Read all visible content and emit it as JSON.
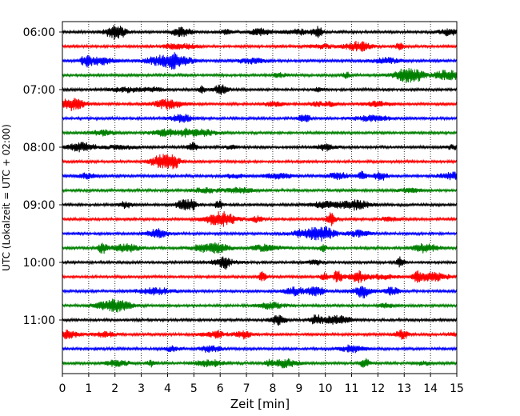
{
  "chart_data": {
    "type": "line",
    "title": "",
    "xlabel": "Zeit  [min]",
    "ylabel": "UTC (Lokalzeit = UTC + 02:00)",
    "xlim": [
      0,
      15
    ],
    "x_ticks": [
      0,
      1,
      2,
      3,
      4,
      5,
      6,
      7,
      8,
      9,
      10,
      11,
      12,
      13,
      14,
      15
    ],
    "y_tick_labels": [
      "06:00",
      "07:00",
      "08:00",
      "09:00",
      "10:00",
      "11:00"
    ],
    "grid": "vertical dotted",
    "trace_interval_minutes": 15,
    "trace_colors": [
      "#000000",
      "#ff0000",
      "#0000ff",
      "#008000"
    ],
    "traces": [
      {
        "start": "06:00",
        "color": "#000000"
      },
      {
        "start": "06:15",
        "color": "#ff0000"
      },
      {
        "start": "06:30",
        "color": "#0000ff"
      },
      {
        "start": "06:45",
        "color": "#008000"
      },
      {
        "start": "07:00",
        "color": "#000000"
      },
      {
        "start": "07:15",
        "color": "#ff0000"
      },
      {
        "start": "07:30",
        "color": "#0000ff"
      },
      {
        "start": "07:45",
        "color": "#008000"
      },
      {
        "start": "08:00",
        "color": "#000000"
      },
      {
        "start": "08:15",
        "color": "#ff0000"
      },
      {
        "start": "08:30",
        "color": "#0000ff"
      },
      {
        "start": "08:45",
        "color": "#008000"
      },
      {
        "start": "09:00",
        "color": "#000000"
      },
      {
        "start": "09:15",
        "color": "#ff0000"
      },
      {
        "start": "09:30",
        "color": "#0000ff"
      },
      {
        "start": "09:45",
        "color": "#008000"
      },
      {
        "start": "10:00",
        "color": "#000000"
      },
      {
        "start": "10:15",
        "color": "#ff0000"
      },
      {
        "start": "10:30",
        "color": "#0000ff"
      },
      {
        "start": "10:45",
        "color": "#008000"
      },
      {
        "start": "11:00",
        "color": "#000000"
      },
      {
        "start": "11:15",
        "color": "#ff0000"
      },
      {
        "start": "11:30",
        "color": "#0000ff"
      },
      {
        "start": "11:45",
        "color": "#008000"
      }
    ]
  }
}
